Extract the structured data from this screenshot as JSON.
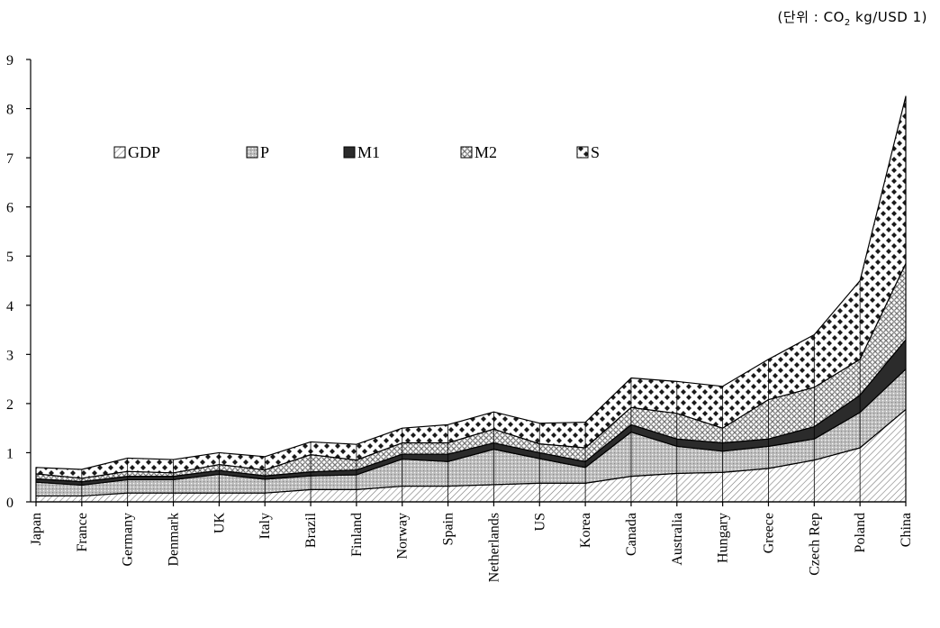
{
  "unit_note": {
    "prefix": "(단위 : CO",
    "sub": "2",
    "suffix": " kg/USD 1)"
  },
  "chart_data": {
    "type": "area",
    "stacked": true,
    "categories": [
      "Japan",
      "France",
      "Germany",
      "Denmark",
      "UK",
      "Italy",
      "Brazil",
      "Finland",
      "Norway",
      "Spain",
      "Netherlands",
      "US",
      "Korea",
      "Canada",
      "Australia",
      "Hungary",
      "Greece",
      "Czech Rep",
      "Poland",
      "China"
    ],
    "ylim": [
      0,
      9
    ],
    "yticks": [
      0,
      1,
      2,
      3,
      4,
      5,
      6,
      7,
      8,
      9
    ],
    "legend_placement": "top-left inside plot",
    "series": [
      {
        "name": "GDP",
        "pattern": "diag-light",
        "values": [
          0.12,
          0.12,
          0.18,
          0.18,
          0.18,
          0.18,
          0.25,
          0.25,
          0.32,
          0.32,
          0.35,
          0.38,
          0.38,
          0.52,
          0.58,
          0.6,
          0.68,
          0.85,
          1.1,
          1.88
        ]
      },
      {
        "name": "P",
        "pattern": "dots-gray",
        "values": [
          0.28,
          0.22,
          0.27,
          0.27,
          0.38,
          0.28,
          0.28,
          0.3,
          0.55,
          0.5,
          0.72,
          0.5,
          0.32,
          0.9,
          0.55,
          0.43,
          0.45,
          0.43,
          0.72,
          0.82
        ]
      },
      {
        "name": "M1",
        "pattern": "solid-dark",
        "values": [
          0.07,
          0.07,
          0.07,
          0.07,
          0.08,
          0.07,
          0.08,
          0.1,
          0.1,
          0.15,
          0.13,
          0.12,
          0.12,
          0.15,
          0.15,
          0.17,
          0.15,
          0.25,
          0.35,
          0.6
        ]
      },
      {
        "name": "M2",
        "pattern": "checker",
        "values": [
          0.1,
          0.07,
          0.1,
          0.07,
          0.12,
          0.12,
          0.35,
          0.2,
          0.23,
          0.23,
          0.28,
          0.18,
          0.28,
          0.35,
          0.52,
          0.3,
          0.8,
          0.8,
          0.73,
          1.55
        ]
      },
      {
        "name": "S",
        "pattern": "diamonds",
        "values": [
          0.13,
          0.18,
          0.27,
          0.27,
          0.24,
          0.27,
          0.26,
          0.32,
          0.3,
          0.37,
          0.35,
          0.42,
          0.52,
          0.6,
          0.65,
          0.85,
          0.82,
          1.07,
          1.6,
          3.4
        ]
      }
    ]
  }
}
